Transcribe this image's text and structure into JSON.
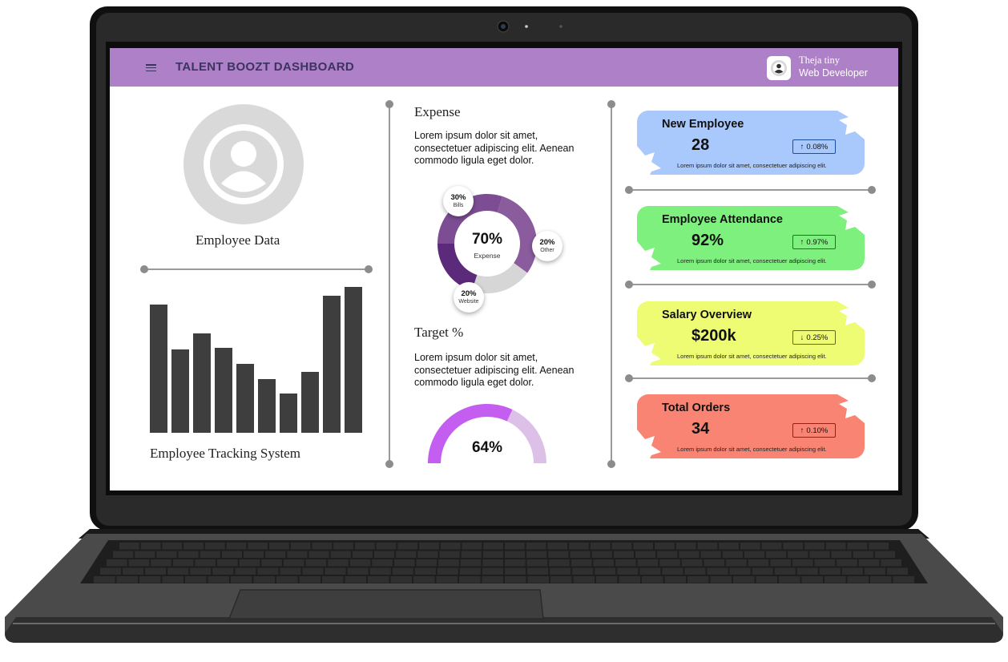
{
  "header": {
    "title": "TALENT BOOZT DASHBOARD",
    "user_name": "Theja tiny",
    "user_role": "Web Developer",
    "accent_color": "#ae80c8"
  },
  "left": {
    "employee_data_label": "Employee Data",
    "tracking_label": "Employee Tracking System",
    "bar_levels": [
      0.88,
      0.57,
      0.68,
      0.58,
      0.47,
      0.37,
      0.27,
      0.42,
      0.94,
      1.0
    ]
  },
  "middle": {
    "expense_title": "Expense",
    "expense_text": [
      "Lorem ipsum dolor sit amet,",
      "consectetuer adipiscing elit. Aenean",
      "commodo ligula eget dolor."
    ],
    "donut": {
      "center_value": "70%",
      "center_label": "Expense",
      "segments": [
        {
          "label": "Bills",
          "value": "30%",
          "share": 0.3,
          "color": "#8a5c9e"
        },
        {
          "label": "Other",
          "value": "20%",
          "share": 0.2,
          "color": "#d6d6d6"
        },
        {
          "label": "Website",
          "value": "20%",
          "share": 0.2,
          "color": "#5b2a7a"
        },
        {
          "label": "",
          "value": "",
          "share": 0.3,
          "color": "#7d4d94"
        }
      ]
    },
    "target_title": "Target %",
    "target_text": [
      "Lorem ipsum dolor sit amet,",
      "consectetuer adipiscing elit. Aenean",
      "commodo ligula eget dolor."
    ],
    "gauge": {
      "value": "64%",
      "level": 0.64,
      "fill_color": "#c35ef0",
      "track_color": "#dcc0e8"
    }
  },
  "cards": [
    {
      "title": "New Employee",
      "value": "28",
      "change": "0.08%",
      "direction": "up",
      "note": "Lorem ipsum dolor sit amet, consectetuer adipiscing elit.",
      "color": "#a9c8fb",
      "badge_color": "#1d4fa0"
    },
    {
      "title": "Employee Attendance",
      "value": "92%",
      "change": "0.97%",
      "direction": "up",
      "note": "Lorem ipsum dolor sit amet, consectetuer adipiscing elit.",
      "color": "#7df07d",
      "badge_color": "#1a7a1a"
    },
    {
      "title": "Salary Overview",
      "value": "$200k",
      "change": "0.25%",
      "direction": "down",
      "note": "Lorem ipsum dolor sit amet, consectetuer adipiscing elit.",
      "color": "#eefc73",
      "badge_color": "#6a6a10"
    },
    {
      "title": "Total Orders",
      "value": "34",
      "change": "0.10%",
      "direction": "up",
      "note": "Lorem ipsum dolor sit amet, consectetuer adipiscing elit.",
      "color": "#f98473",
      "badge_color": "#9a1f12"
    }
  ]
}
